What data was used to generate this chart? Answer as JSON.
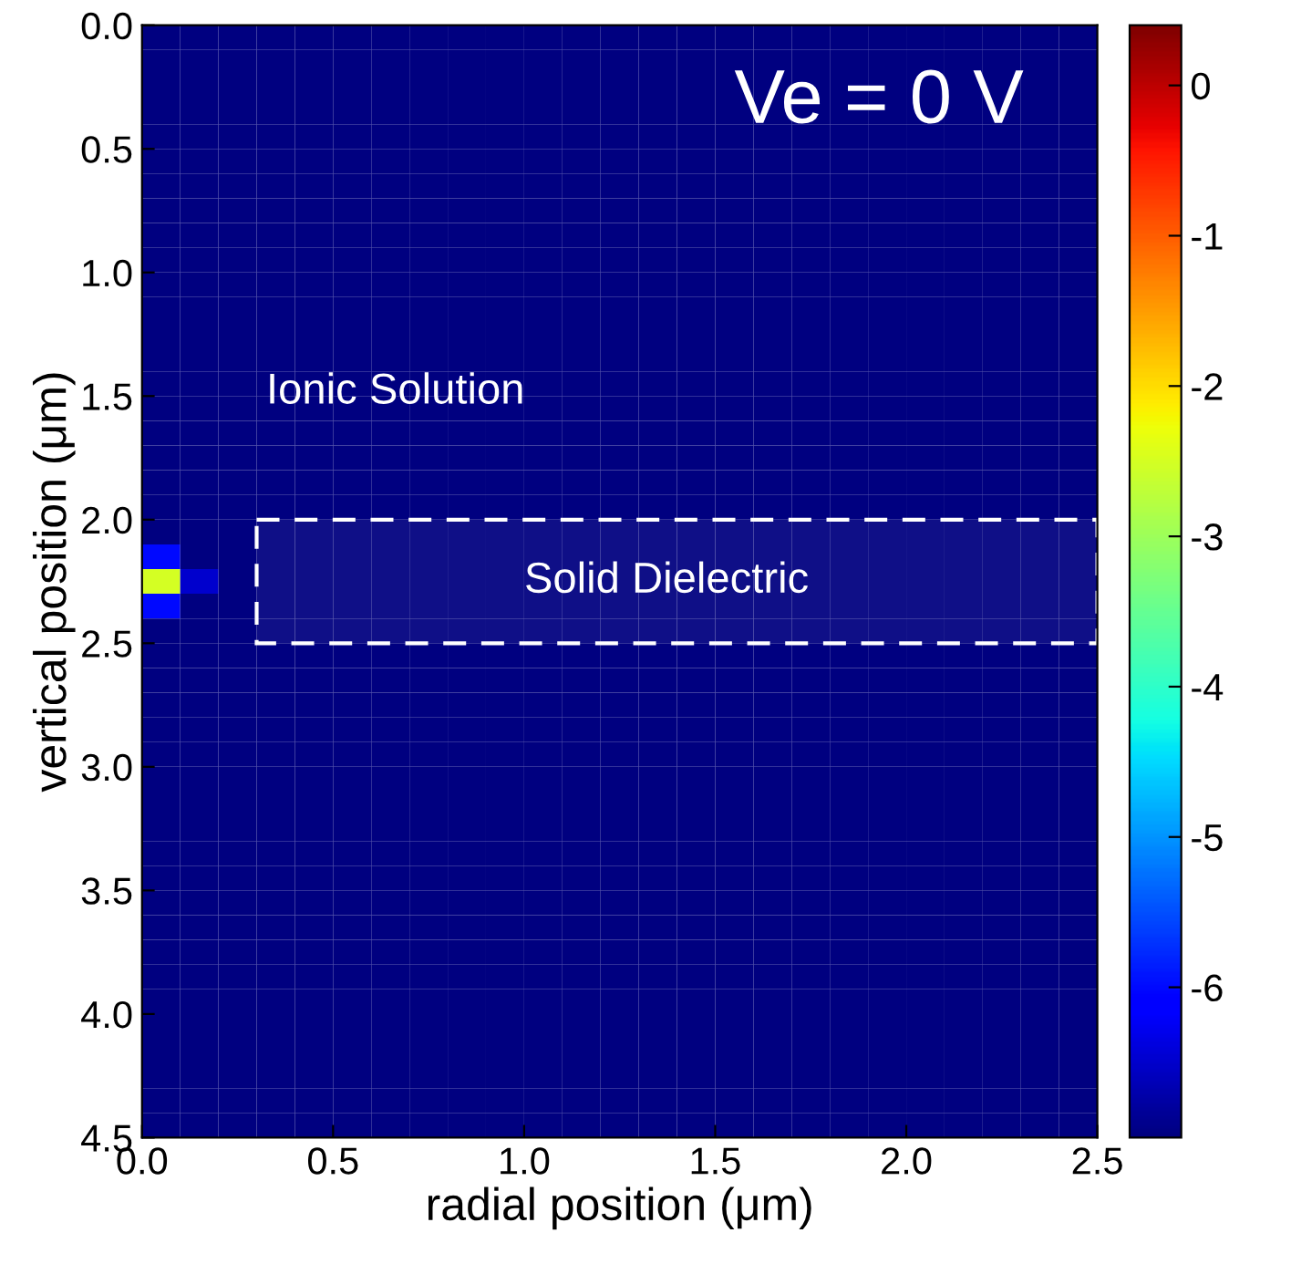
{
  "chart_data": {
    "type": "heatmap",
    "xlabel": "radial position (μm)",
    "ylabel": "vertical position (μm)",
    "xlim": [
      0,
      2.5
    ],
    "ylim": [
      4.5,
      0
    ],
    "xticks": [
      {
        "value": 0,
        "label": "0.0"
      },
      {
        "value": 0.5,
        "label": "0.5"
      },
      {
        "value": 1,
        "label": "1.0"
      },
      {
        "value": 1.5,
        "label": "1.5"
      },
      {
        "value": 2,
        "label": "2.0"
      },
      {
        "value": 2.5,
        "label": "2.5"
      }
    ],
    "yticks": [
      {
        "value": 0,
        "label": "0.0"
      },
      {
        "value": 0.5,
        "label": "0.5"
      },
      {
        "value": 1,
        "label": "1.0"
      },
      {
        "value": 1.5,
        "label": "1.5"
      },
      {
        "value": 2,
        "label": "2.0"
      },
      {
        "value": 2.5,
        "label": "2.5"
      },
      {
        "value": 3,
        "label": "3.0"
      },
      {
        "value": 3.5,
        "label": "3.5"
      },
      {
        "value": 4,
        "label": "4.0"
      },
      {
        "value": 4.5,
        "label": "4.5"
      }
    ],
    "clim": [
      -7,
      0.4
    ],
    "cticks": [
      0,
      -1,
      -2,
      -3,
      -4,
      -5,
      -6
    ],
    "annotations": [
      "Ve = 0 V",
      "Ionic Solution"
    ],
    "bands": [
      {
        "axis": "y",
        "from": 2.0,
        "to": 2.5,
        "label": "Solid Dielectric",
        "color": "#ffffff"
      }
    ],
    "cells": [
      [
        -7,
        -7,
        -7,
        -7,
        -7,
        -7,
        -7,
        -7,
        -7,
        -7,
        -7,
        -7,
        -7,
        -7,
        -7,
        -7,
        -7,
        -7,
        -7,
        -7,
        -7,
        -7,
        -7,
        -7,
        -7
      ],
      [
        -7,
        -7,
        -7,
        -7,
        -7,
        -7,
        -7,
        -7,
        -7,
        -7,
        -7,
        -7,
        -7,
        -7,
        -7,
        -7,
        -7,
        -7,
        -7,
        -7,
        -7,
        -7,
        -7,
        -7,
        -7
      ],
      [
        -7,
        -7,
        -7,
        -7,
        -7,
        -7,
        -7,
        -7,
        -7,
        -7,
        -7,
        -7,
        -7,
        -7,
        -7,
        -7,
        -7,
        -7,
        -7,
        -7,
        -7,
        -7,
        -7,
        -7,
        -7
      ],
      [
        -7,
        -7,
        -7,
        -7,
        -7,
        -7,
        -7,
        -7,
        -7,
        -7,
        -7,
        -7,
        -7,
        -7,
        -7,
        -7,
        -7,
        -7,
        -7,
        -7,
        -7,
        -7,
        -7,
        -7,
        -7
      ],
      [
        -7,
        -7,
        -7,
        -7,
        -7,
        -7,
        -7,
        -7,
        -7,
        -7,
        -7,
        -7,
        -7,
        -7,
        -7,
        -7,
        -7,
        -7,
        -7,
        -7,
        -7,
        -7,
        -7,
        -7,
        -7
      ],
      [
        -7,
        -7,
        -7,
        -7,
        -7,
        -7,
        -7,
        -7,
        -7,
        -7,
        -7,
        -7,
        -7,
        -7,
        -7,
        -7,
        -7,
        -7,
        -7,
        -7,
        -7,
        -7,
        -7,
        -7,
        -7
      ],
      [
        -7,
        -7,
        -7,
        -7,
        -7,
        -7,
        -7,
        -7,
        -7,
        -7,
        -7,
        -7,
        -7,
        -7,
        -7,
        -7,
        -7,
        -7,
        -7,
        -7,
        -7,
        -7,
        -7,
        -7,
        -7
      ],
      [
        -7,
        -7,
        -7,
        -7,
        -7,
        -7,
        -7,
        -7,
        -7,
        -7,
        -7,
        -7,
        -7,
        -7,
        -7,
        -7,
        -7,
        -7,
        -7,
        -7,
        -7,
        -7,
        -7,
        -7,
        -7
      ],
      [
        -7,
        -7,
        -7,
        -7,
        -7,
        -7,
        -7,
        -7,
        -7,
        -7,
        -7,
        -7,
        -7,
        -7,
        -7,
        -7,
        -7,
        -7,
        -7,
        -7,
        -7,
        -7,
        -7,
        -7,
        -7
      ],
      [
        -7,
        -7,
        -7,
        -7,
        -7,
        -7,
        -7,
        -7,
        -7,
        -7,
        -7,
        -7,
        -7,
        -7,
        -7,
        -7,
        -7,
        -7,
        -7,
        -7,
        -7,
        -7,
        -7,
        -7,
        -7
      ],
      [
        -7,
        -7,
        -7,
        -7,
        -7,
        -7,
        -7,
        -7,
        -7,
        -7,
        -7,
        -7,
        -7,
        -7,
        -7,
        -7,
        -7,
        -7,
        -7,
        -7,
        -7,
        -7,
        -7,
        -7,
        -7
      ],
      [
        -7,
        -7,
        -7,
        -7,
        -7,
        -7,
        -7,
        -7,
        -7,
        -7,
        -7,
        -7,
        -7,
        -7,
        -7,
        -7,
        -7,
        -7,
        -7,
        -7,
        -7,
        -7,
        -7,
        -7,
        -7
      ],
      [
        -7,
        -7,
        -7,
        -7,
        -7,
        -7,
        -7,
        -7,
        -7,
        -7,
        -7,
        -7,
        -7,
        -7,
        -7,
        -7,
        -7,
        -7,
        -7,
        -7,
        -7,
        -7,
        -7,
        -7,
        -7
      ],
      [
        -7,
        -7,
        -7,
        -7,
        -7,
        -7,
        -7,
        -7,
        -7,
        -7,
        -7,
        -7,
        -7,
        -7,
        -7,
        -7,
        -7,
        -7,
        -7,
        -7,
        -7,
        -7,
        -7,
        -7,
        -7
      ],
      [
        -7,
        -7,
        -7,
        -7,
        -7,
        -7,
        -7,
        -7,
        -7,
        -7,
        -7,
        -7,
        -7,
        -7,
        -7,
        -7,
        -7,
        -7,
        -7,
        -7,
        -7,
        -7,
        -7,
        -7,
        -7
      ],
      [
        -7,
        -7,
        -7,
        -7,
        -7,
        -7,
        -7,
        -7,
        -7,
        -7,
        -7,
        -7,
        -7,
        -7,
        -7,
        -7,
        -7,
        -7,
        -7,
        -7,
        -7,
        -7,
        -7,
        -7,
        -7
      ],
      [
        -7,
        -7,
        -7,
        -7,
        -7,
        -7,
        -7,
        -7,
        -7,
        -7,
        -7,
        -7,
        -7,
        -7,
        -7,
        -7,
        -7,
        -7,
        -7,
        -7,
        -7,
        -7,
        -7,
        -7,
        -7
      ],
      [
        -7,
        -7,
        -7,
        -7,
        -7,
        -7,
        -7,
        -7,
        -7,
        -7,
        -7,
        -7,
        -7,
        -7,
        -7,
        -7,
        -7,
        -7,
        -7,
        -7,
        -7,
        -7,
        -7,
        -7,
        -7
      ],
      [
        -7,
        -7,
        -7,
        -7,
        -7,
        -7,
        -7,
        -7,
        -7,
        -7,
        -7,
        -7,
        -7,
        -7,
        -7,
        -7,
        -7,
        -7,
        -7,
        -7,
        -7,
        -7,
        -7,
        -7,
        -7
      ],
      [
        -7,
        -7,
        -7,
        -7,
        -7,
        -7,
        -7,
        -7,
        -7,
        -7,
        -7,
        -7,
        -7,
        -7,
        -7,
        -7,
        -7,
        -7,
        -7,
        -7,
        -7,
        -7,
        -7,
        -7,
        -7
      ],
      [
        -7,
        -7,
        -7,
        -7,
        -7,
        -7,
        -7,
        -7,
        -7,
        -7,
        -7,
        -7,
        -7,
        -7,
        -7,
        -7,
        -7,
        -7,
        -7,
        -7,
        -7,
        -7,
        -7,
        -7,
        -7
      ],
      [
        -6,
        -7,
        -7,
        -7,
        -7,
        -7,
        -7,
        -7,
        -7,
        -7,
        -7,
        -7,
        -7,
        -7,
        -7,
        -7,
        -7,
        -7,
        -7,
        -7,
        -7,
        -7,
        -7,
        -7,
        -7
      ],
      [
        -2.5,
        -6.5,
        -7,
        -7,
        -7,
        -7,
        -7,
        -7,
        -7,
        -7,
        -7,
        -7,
        -7,
        -7,
        -7,
        -7,
        -7,
        -7,
        -7,
        -7,
        -7,
        -7,
        -7,
        -7,
        -7
      ],
      [
        -6,
        -7,
        -7,
        -7,
        -7,
        -7,
        -7,
        -7,
        -7,
        -7,
        -7,
        -7,
        -7,
        -7,
        -7,
        -7,
        -7,
        -7,
        -7,
        -7,
        -7,
        -7,
        -7,
        -7,
        -7
      ],
      [
        -7,
        -7,
        -7,
        -7,
        -7,
        -7,
        -7,
        -7,
        -7,
        -7,
        -7,
        -7,
        -7,
        -7,
        -7,
        -7,
        -7,
        -7,
        -7,
        -7,
        -7,
        -7,
        -7,
        -7,
        -7
      ],
      [
        -7,
        -7,
        -7,
        -7,
        -7,
        -7,
        -7,
        -7,
        -7,
        -7,
        -7,
        -7,
        -7,
        -7,
        -7,
        -7,
        -7,
        -7,
        -7,
        -7,
        -7,
        -7,
        -7,
        -7,
        -7
      ],
      [
        -7,
        -7,
        -7,
        -7,
        -7,
        -7,
        -7,
        -7,
        -7,
        -7,
        -7,
        -7,
        -7,
        -7,
        -7,
        -7,
        -7,
        -7,
        -7,
        -7,
        -7,
        -7,
        -7,
        -7,
        -7
      ],
      [
        -7,
        -7,
        -7,
        -7,
        -7,
        -7,
        -7,
        -7,
        -7,
        -7,
        -7,
        -7,
        -7,
        -7,
        -7,
        -7,
        -7,
        -7,
        -7,
        -7,
        -7,
        -7,
        -7,
        -7,
        -7
      ],
      [
        -7,
        -7,
        -7,
        -7,
        -7,
        -7,
        -7,
        -7,
        -7,
        -7,
        -7,
        -7,
        -7,
        -7,
        -7,
        -7,
        -7,
        -7,
        -7,
        -7,
        -7,
        -7,
        -7,
        -7,
        -7
      ],
      [
        -7,
        -7,
        -7,
        -7,
        -7,
        -7,
        -7,
        -7,
        -7,
        -7,
        -7,
        -7,
        -7,
        -7,
        -7,
        -7,
        -7,
        -7,
        -7,
        -7,
        -7,
        -7,
        -7,
        -7,
        -7
      ],
      [
        -7,
        -7,
        -7,
        -7,
        -7,
        -7,
        -7,
        -7,
        -7,
        -7,
        -7,
        -7,
        -7,
        -7,
        -7,
        -7,
        -7,
        -7,
        -7,
        -7,
        -7,
        -7,
        -7,
        -7,
        -7
      ],
      [
        -7,
        -7,
        -7,
        -7,
        -7,
        -7,
        -7,
        -7,
        -7,
        -7,
        -7,
        -7,
        -7,
        -7,
        -7,
        -7,
        -7,
        -7,
        -7,
        -7,
        -7,
        -7,
        -7,
        -7,
        -7
      ],
      [
        -7,
        -7,
        -7,
        -7,
        -7,
        -7,
        -7,
        -7,
        -7,
        -7,
        -7,
        -7,
        -7,
        -7,
        -7,
        -7,
        -7,
        -7,
        -7,
        -7,
        -7,
        -7,
        -7,
        -7,
        -7
      ],
      [
        -7,
        -7,
        -7,
        -7,
        -7,
        -7,
        -7,
        -7,
        -7,
        -7,
        -7,
        -7,
        -7,
        -7,
        -7,
        -7,
        -7,
        -7,
        -7,
        -7,
        -7,
        -7,
        -7,
        -7,
        -7
      ],
      [
        -7,
        -7,
        -7,
        -7,
        -7,
        -7,
        -7,
        -7,
        -7,
        -7,
        -7,
        -7,
        -7,
        -7,
        -7,
        -7,
        -7,
        -7,
        -7,
        -7,
        -7,
        -7,
        -7,
        -7,
        -7
      ],
      [
        -7,
        -7,
        -7,
        -7,
        -7,
        -7,
        -7,
        -7,
        -7,
        -7,
        -7,
        -7,
        -7,
        -7,
        -7,
        -7,
        -7,
        -7,
        -7,
        -7,
        -7,
        -7,
        -7,
        -7,
        -7
      ],
      [
        -7,
        -7,
        -7,
        -7,
        -7,
        -7,
        -7,
        -7,
        -7,
        -7,
        -7,
        -7,
        -7,
        -7,
        -7,
        -7,
        -7,
        -7,
        -7,
        -7,
        -7,
        -7,
        -7,
        -7,
        -7
      ],
      [
        -7,
        -7,
        -7,
        -7,
        -7,
        -7,
        -7,
        -7,
        -7,
        -7,
        -7,
        -7,
        -7,
        -7,
        -7,
        -7,
        -7,
        -7,
        -7,
        -7,
        -7,
        -7,
        -7,
        -7,
        -7
      ],
      [
        -7,
        -7,
        -7,
        -7,
        -7,
        -7,
        -7,
        -7,
        -7,
        -7,
        -7,
        -7,
        -7,
        -7,
        -7,
        -7,
        -7,
        -7,
        -7,
        -7,
        -7,
        -7,
        -7,
        -7,
        -7
      ],
      [
        -7,
        -7,
        -7,
        -7,
        -7,
        -7,
        -7,
        -7,
        -7,
        -7,
        -7,
        -7,
        -7,
        -7,
        -7,
        -7,
        -7,
        -7,
        -7,
        -7,
        -7,
        -7,
        -7,
        -7,
        -7
      ],
      [
        -7,
        -7,
        -7,
        -7,
        -7,
        -7,
        -7,
        -7,
        -7,
        -7,
        -7,
        -7,
        -7,
        -7,
        -7,
        -7,
        -7,
        -7,
        -7,
        -7,
        -7,
        -7,
        -7,
        -7,
        -7
      ],
      [
        -7,
        -7,
        -7,
        -7,
        -7,
        -7,
        -7,
        -7,
        -7,
        -7,
        -7,
        -7,
        -7,
        -7,
        -7,
        -7,
        -7,
        -7,
        -7,
        -7,
        -7,
        -7,
        -7,
        -7,
        -7
      ],
      [
        -7,
        -7,
        -7,
        -7,
        -7,
        -7,
        -7,
        -7,
        -7,
        -7,
        -7,
        -7,
        -7,
        -7,
        -7,
        -7,
        -7,
        -7,
        -7,
        -7,
        -7,
        -7,
        -7,
        -7,
        -7
      ],
      [
        -7,
        -7,
        -7,
        -7,
        -7,
        -7,
        -7,
        -7,
        -7,
        -7,
        -7,
        -7,
        -7,
        -7,
        -7,
        -7,
        -7,
        -7,
        -7,
        -7,
        -7,
        -7,
        -7,
        -7,
        -7
      ],
      [
        -7,
        -7,
        -7,
        -7,
        -7,
        -7,
        -7,
        -7,
        -7,
        -7,
        -7,
        -7,
        -7,
        -7,
        -7,
        -7,
        -7,
        -7,
        -7,
        -7,
        -7,
        -7,
        -7,
        -7,
        -7
      ]
    ]
  }
}
